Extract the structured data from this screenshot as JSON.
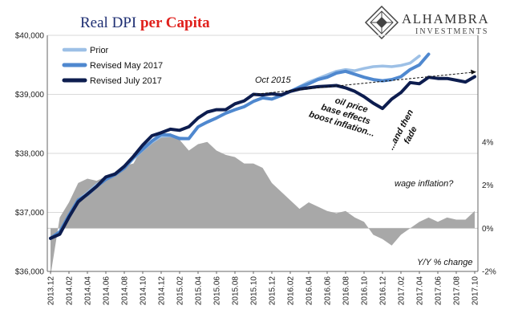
{
  "chart_data": {
    "type": "line",
    "title_parts": [
      {
        "text": "Real DPI ",
        "color": "#1f2f73",
        "bold": false
      },
      {
        "text": "per Capita",
        "color": "#e0201c",
        "bold": true
      }
    ],
    "brand": {
      "name": "ALHAMBRA",
      "sub": "INVESTMENTS"
    },
    "x": [
      "2013.12",
      "2014.01",
      "2014.02",
      "2014.03",
      "2014.04",
      "2014.05",
      "2014.06",
      "2014.07",
      "2014.08",
      "2014.09",
      "2014.10",
      "2014.11",
      "2014.12",
      "2015.01",
      "2015.02",
      "2015.03",
      "2015.04",
      "2015.05",
      "2015.06",
      "2015.07",
      "2015.08",
      "2015.09",
      "2015.10",
      "2015.11",
      "2015.12",
      "2016.01",
      "2016.02",
      "2016.03",
      "2016.04",
      "2016.05",
      "2016.06",
      "2016.07",
      "2016.08",
      "2016.09",
      "2016.10",
      "2016.11",
      "2016.12",
      "2017.01",
      "2017.02",
      "2017.03",
      "2017.04",
      "2017.05",
      "2017.06",
      "2017.07",
      "2017.08",
      "2017.09",
      "2017.10"
    ],
    "x_tick_labels": [
      "2013.12",
      "2014.02",
      "2014.04",
      "2014.06",
      "2014.08",
      "2014.10",
      "2014.12",
      "2015.02",
      "2015.04",
      "2015.06",
      "2015.08",
      "2015.10",
      "2015.12",
      "2016.02",
      "2016.04",
      "2016.06",
      "2016.08",
      "2016.10",
      "2016.12",
      "2017.02",
      "2017.04",
      "2017.06",
      "2017.08",
      "2017.10"
    ],
    "left_axis": {
      "ylim": [
        36000,
        40000
      ],
      "ticks": [
        36000,
        37000,
        38000,
        39000,
        40000
      ],
      "labels": [
        "$36,000",
        "$37,000",
        "$38,000",
        "$39,000",
        "$40,000"
      ]
    },
    "right_axis": {
      "ylim": [
        -2,
        8.94
      ],
      "ticks": [
        -2,
        0,
        2,
        4
      ],
      "labels": [
        "-2%",
        "0%",
        "2%",
        "4%"
      ]
    },
    "grid": "horizontal",
    "legend_position": "top-left",
    "series": [
      {
        "name": "Prior",
        "color": "#9dc0e6",
        "width": 3.5,
        "axis": "left",
        "values": [
          36560,
          36670,
          36950,
          37210,
          37330,
          37470,
          37560,
          37640,
          37750,
          37910,
          38060,
          38190,
          38290,
          38300,
          38260,
          38250,
          38450,
          38530,
          38600,
          38680,
          38740,
          38790,
          38880,
          38940,
          38920,
          38980,
          39050,
          39130,
          39210,
          39270,
          39330,
          39390,
          39420,
          39400,
          39440,
          39470,
          39480,
          39470,
          39490,
          39530,
          39650,
          null,
          null,
          null,
          null,
          null,
          null
        ]
      },
      {
        "name": "Revised May 2017",
        "color": "#4f88cf",
        "width": 4,
        "axis": "left",
        "values": [
          36560,
          36670,
          36950,
          37210,
          37300,
          37440,
          37560,
          37640,
          37750,
          37930,
          38070,
          38210,
          38320,
          38310,
          38250,
          38250,
          38450,
          38530,
          38600,
          38680,
          38740,
          38790,
          38880,
          38940,
          38920,
          38980,
          39050,
          39120,
          39180,
          39250,
          39290,
          39360,
          39390,
          39340,
          39290,
          39250,
          39230,
          39250,
          39300,
          39420,
          39500,
          39680,
          null,
          null,
          null,
          null,
          null
        ]
      },
      {
        "name": "Revised July 2017",
        "color": "#0d1d4f",
        "width": 4,
        "axis": "left",
        "values": [
          36560,
          36630,
          36920,
          37180,
          37310,
          37440,
          37600,
          37650,
          37780,
          37950,
          38140,
          38300,
          38350,
          38410,
          38390,
          38450,
          38600,
          38700,
          38740,
          38740,
          38840,
          38890,
          39000,
          38990,
          39010,
          38990,
          39050,
          39090,
          39110,
          39130,
          39140,
          39150,
          39110,
          39050,
          38960,
          38850,
          38760,
          38920,
          39030,
          39200,
          39180,
          39290,
          39270,
          39270,
          39240,
          39210,
          39300
        ]
      },
      {
        "name": "Y/Y % change",
        "type": "area",
        "color": "#a8a8a8",
        "axis": "right",
        "values": [
          -2.2,
          0.5,
          1.2,
          2.1,
          2.3,
          2.2,
          2.4,
          2.6,
          2.9,
          3.0,
          3.8,
          4.1,
          4.4,
          4.4,
          4.1,
          3.6,
          3.9,
          4.0,
          3.6,
          3.4,
          3.3,
          3.0,
          3.0,
          2.8,
          2.1,
          1.7,
          1.3,
          0.9,
          1.2,
          1.0,
          0.8,
          0.7,
          0.8,
          0.5,
          0.3,
          -0.3,
          -0.5,
          -0.8,
          -0.3,
          0.0,
          0.3,
          0.5,
          0.3,
          0.5,
          0.4,
          0.4,
          0.8
        ]
      }
    ],
    "annotations": [
      {
        "text": "Oct 2015"
      },
      {
        "text": "oil price"
      },
      {
        "text": "base effects"
      },
      {
        "text": "boost inflation..."
      },
      {
        "text": "...and then"
      },
      {
        "text": "fade"
      },
      {
        "text": "wage inflation?"
      },
      {
        "text": "Y/Y % change"
      }
    ]
  }
}
